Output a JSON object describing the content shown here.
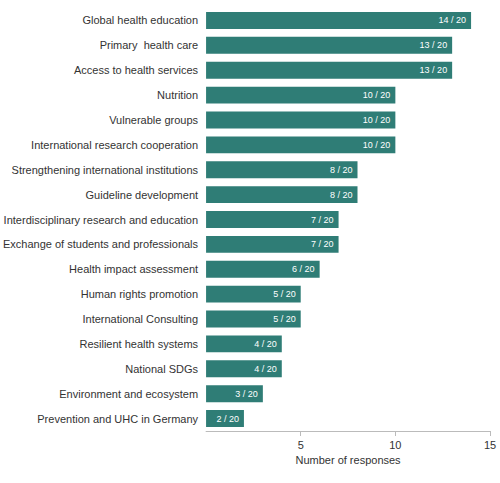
{
  "chart_data": {
    "type": "bar",
    "orientation": "horizontal",
    "x_label": "Number of responses",
    "categories": [
      "Global health education",
      "Primary  health care",
      "Access to health services",
      "Nutrition",
      "Vulnerable groups",
      "International research cooperation",
      "Strengthening international institutions",
      "Guideline development",
      "Interdisciplinary research and education",
      "Exchange of students and professionals",
      "Health impact assessment",
      "Human rights promotion",
      "International Consulting",
      "Resilient health systems",
      "National SDGs",
      "Environment and ecosystem",
      "Prevention and UHC in Germany"
    ],
    "values": [
      14,
      13,
      13,
      10,
      10,
      10,
      8,
      8,
      7,
      7,
      6,
      5,
      5,
      4,
      4,
      3,
      2
    ],
    "value_labels": [
      "14 / 20",
      "13 / 20",
      "13 / 20",
      "10 / 20",
      "10 / 20",
      "10 / 20",
      "8 / 20",
      "8 / 20",
      "7 / 20",
      "7 / 20",
      "6 / 20",
      "5 / 20",
      "5 / 20",
      "4 / 20",
      "4 / 20",
      "3 / 20",
      "2 / 20"
    ],
    "color": "#2f7d76",
    "xlim": [
      0,
      15
    ],
    "xticks": [
      5,
      10,
      15
    ],
    "grid": false,
    "data_labels": true
  }
}
